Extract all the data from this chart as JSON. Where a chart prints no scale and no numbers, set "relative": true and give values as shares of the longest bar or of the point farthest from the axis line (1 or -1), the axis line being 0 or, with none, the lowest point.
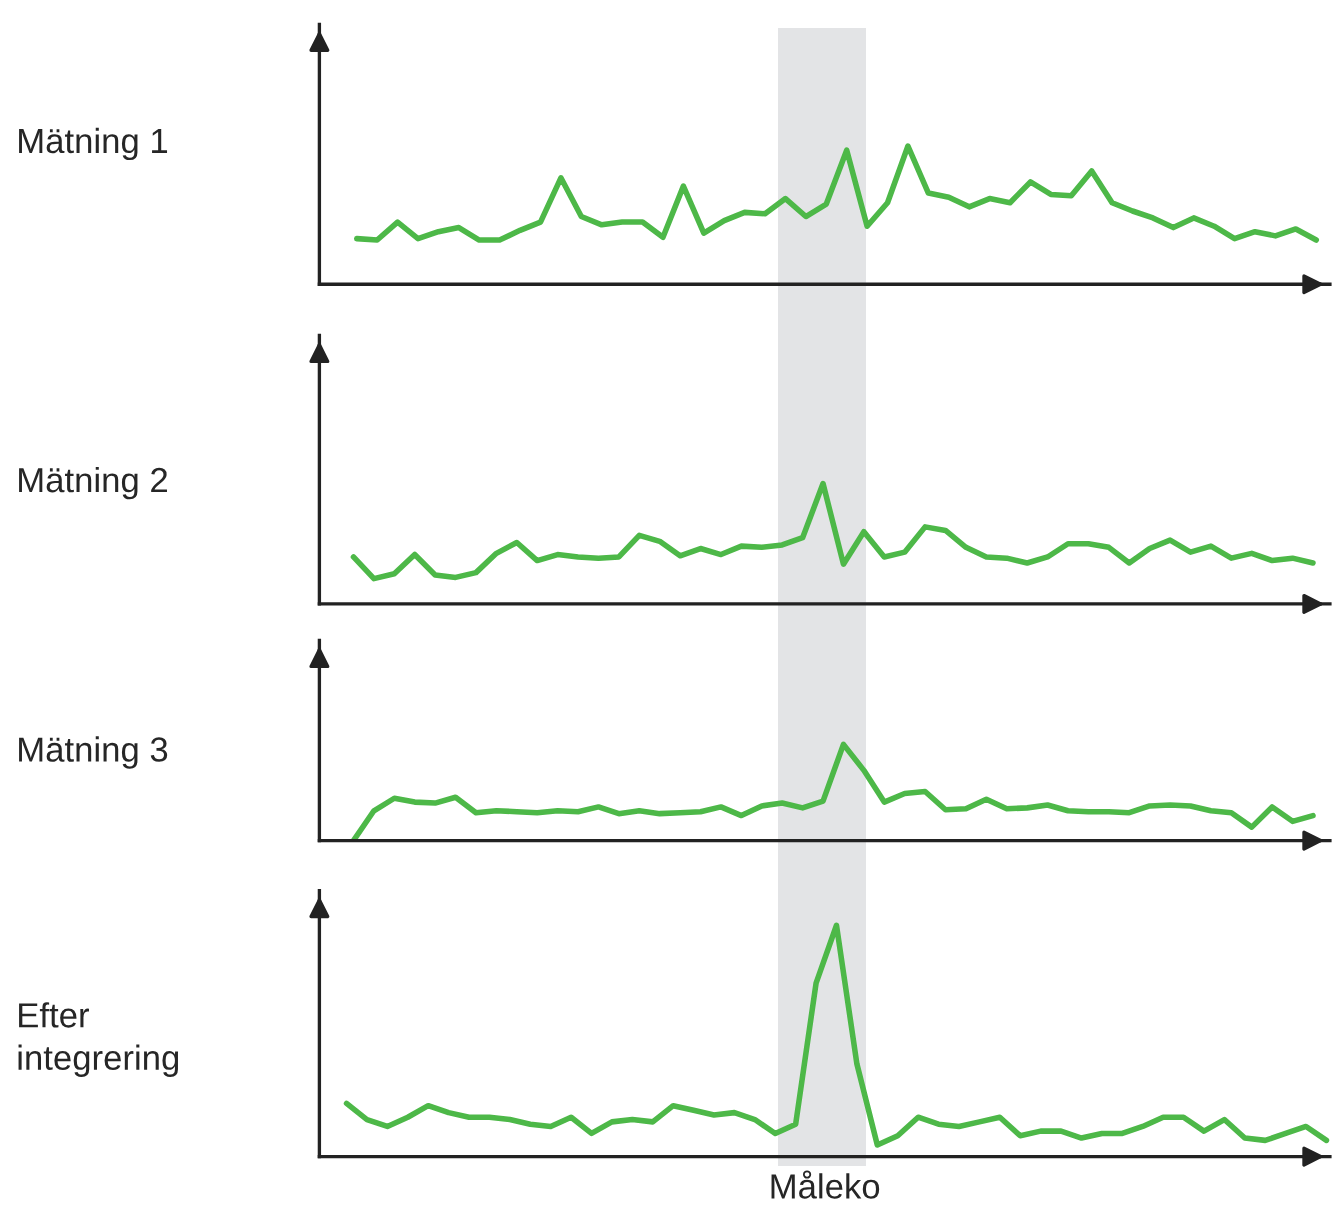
{
  "chart_data": [
    {
      "type": "line",
      "ylabel": "Mätning 1",
      "relative": true,
      "categories": [
        null,
        null,
        null,
        null,
        null,
        null,
        null,
        null,
        null,
        null,
        null,
        null,
        null,
        null,
        null,
        null,
        null,
        null,
        null,
        null,
        null,
        null,
        null,
        null,
        null,
        null,
        null,
        null,
        null,
        null,
        null,
        null,
        null,
        null,
        null,
        null,
        null,
        null,
        null,
        null,
        null,
        null,
        null,
        null,
        null,
        null,
        null,
        null
      ],
      "series": [
        {
          "color": "#4db848",
          "values": [
            0.33,
            0.32,
            0.45,
            0.33,
            0.38,
            0.41,
            0.32,
            0.32,
            0.39,
            0.45,
            0.77,
            0.49,
            0.43,
            0.45,
            0.45,
            0.34,
            0.71,
            0.37,
            0.46,
            0.52,
            0.51,
            0.62,
            0.49,
            0.58,
            0.97,
            0.42,
            0.59,
            1.0,
            0.66,
            0.63,
            0.56,
            0.62,
            0.59,
            0.74,
            0.65,
            0.64,
            0.82,
            0.59,
            0.53,
            0.48,
            0.41,
            0.48,
            0.42,
            0.33,
            0.38,
            0.35,
            0.4,
            0.32
          ]
        }
      ]
    },
    {
      "type": "line",
      "ylabel": "Mätning 2",
      "relative": true,
      "categories": [
        null,
        null,
        null,
        null,
        null,
        null,
        null,
        null,
        null,
        null,
        null,
        null,
        null,
        null,
        null,
        null,
        null,
        null,
        null,
        null,
        null,
        null,
        null,
        null,
        null,
        null,
        null,
        null,
        null,
        null,
        null,
        null,
        null,
        null,
        null,
        null,
        null,
        null,
        null,
        null,
        null,
        null,
        null,
        null,
        null,
        null,
        null,
        null
      ],
      "series": [
        {
          "color": "#4db848",
          "values": [
            0.39,
            0.21,
            0.25,
            0.41,
            0.24,
            0.22,
            0.26,
            0.42,
            0.51,
            0.36,
            0.41,
            0.39,
            0.38,
            0.39,
            0.57,
            0.52,
            0.4,
            0.46,
            0.41,
            0.48,
            0.47,
            0.49,
            0.55,
            1.0,
            0.33,
            0.6,
            0.39,
            0.43,
            0.64,
            0.61,
            0.47,
            0.39,
            0.38,
            0.34,
            0.39,
            0.5,
            0.5,
            0.47,
            0.34,
            0.46,
            0.53,
            0.43,
            0.48,
            0.38,
            0.42,
            0.36,
            0.38,
            0.34
          ]
        }
      ]
    },
    {
      "type": "line",
      "ylabel": "Mätning 3",
      "relative": true,
      "categories": [
        null,
        null,
        null,
        null,
        null,
        null,
        null,
        null,
        null,
        null,
        null,
        null,
        null,
        null,
        null,
        null,
        null,
        null,
        null,
        null,
        null,
        null,
        null,
        null,
        null,
        null,
        null,
        null,
        null,
        null,
        null,
        null,
        null,
        null,
        null,
        null,
        null,
        null,
        null,
        null,
        null,
        null,
        null,
        null,
        null,
        null,
        null,
        null
      ],
      "series": [
        {
          "color": "#4db848",
          "values": [
            0,
            0.31,
            0.44,
            0.4,
            0.39,
            0.45,
            0.29,
            0.31,
            0.3,
            0.29,
            0.31,
            0.3,
            0.35,
            0.28,
            0.31,
            0.28,
            0.29,
            0.3,
            0.35,
            0.26,
            0.36,
            0.39,
            0.34,
            0.41,
            1.0,
            0.73,
            0.4,
            0.49,
            0.51,
            0.32,
            0.33,
            0.43,
            0.33,
            0.34,
            0.37,
            0.31,
            0.3,
            0.3,
            0.29,
            0.36,
            0.37,
            0.36,
            0.31,
            0.29,
            0.14,
            0.35,
            0.2,
            0.26
          ]
        }
      ]
    },
    {
      "type": "line",
      "ylabel": "Efter\nintegrering",
      "xlabel": "Måleko",
      "relative": true,
      "categories": [
        null,
        null,
        null,
        null,
        null,
        null,
        null,
        null,
        null,
        null,
        null,
        null,
        null,
        null,
        null,
        null,
        null,
        null,
        null,
        null,
        null,
        null,
        null,
        null,
        null,
        null,
        null,
        null,
        null,
        null,
        null,
        null,
        null,
        null,
        null,
        null,
        null,
        null,
        null,
        null,
        null,
        null,
        null,
        null,
        null,
        null,
        null,
        null,
        null
      ],
      "series": [
        {
          "color": "#4db848",
          "values": [
            0.23,
            0.16,
            0.13,
            0.17,
            0.22,
            0.19,
            0.17,
            0.17,
            0.16,
            0.14,
            0.13,
            0.17,
            0.1,
            0.15,
            0.16,
            0.15,
            0.22,
            0.2,
            0.18,
            0.19,
            0.16,
            0.1,
            0.14,
            0.75,
            1.0,
            0.4,
            0.05,
            0.09,
            0.17,
            0.14,
            0.13,
            0.15,
            0.17,
            0.09,
            0.11,
            0.11,
            0.08,
            0.1,
            0.1,
            0.13,
            0.17,
            0.17,
            0.11,
            0.16,
            0.08,
            0.07,
            0.1,
            0.13,
            0.07
          ]
        }
      ]
    }
  ]
}
